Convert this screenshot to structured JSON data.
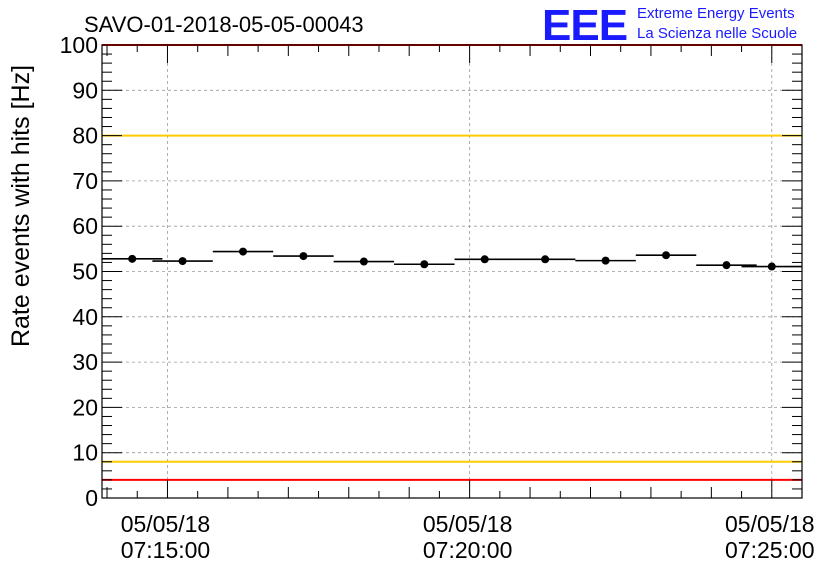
{
  "chart_data": {
    "type": "scatter",
    "title": "SAVO-01-2018-05-05-00043",
    "ylabel": "Rate events with hits [Hz]",
    "xlabel": "",
    "ylim": [
      0,
      100
    ],
    "y_ticks": [
      0,
      10,
      20,
      30,
      40,
      50,
      60,
      70,
      80,
      90,
      100
    ],
    "x_range": [
      "05/05/18 07:13:55",
      "05/05/18 07:25:30"
    ],
    "x_tick_labels": [
      {
        "date": "05/05/18",
        "time": "07:15:00"
      },
      {
        "date": "05/05/18",
        "time": "07:20:00"
      },
      {
        "date": "05/05/18",
        "time": "07:25:00"
      }
    ],
    "grid": true,
    "series": [
      {
        "x": [
          "07:14:25",
          "07:15:15",
          "07:16:15",
          "07:17:15",
          "07:18:15",
          "07:19:15",
          "07:20:15",
          "07:21:15",
          "07:22:15",
          "07:23:15",
          "07:24:15",
          "07:25:00"
        ],
        "bin_width_s": 60,
        "values": [
          52.8,
          52.3,
          54.4,
          53.4,
          52.2,
          51.6,
          52.7,
          52.7,
          52.4,
          53.6,
          51.4,
          51.1
        ],
        "color": "#000000"
      }
    ],
    "reference_lines": [
      {
        "y": 100,
        "color": "#ff0000"
      },
      {
        "y": 80,
        "color": "#ffcc00"
      },
      {
        "y": 8,
        "color": "#ffcc00"
      },
      {
        "y": 4,
        "color": "#ff0000"
      }
    ]
  },
  "logo": {
    "mark": "EEE",
    "line1": "Extreme Energy Events",
    "line2": "La Scienza nelle Scuole",
    "color": "#1a1aff"
  }
}
